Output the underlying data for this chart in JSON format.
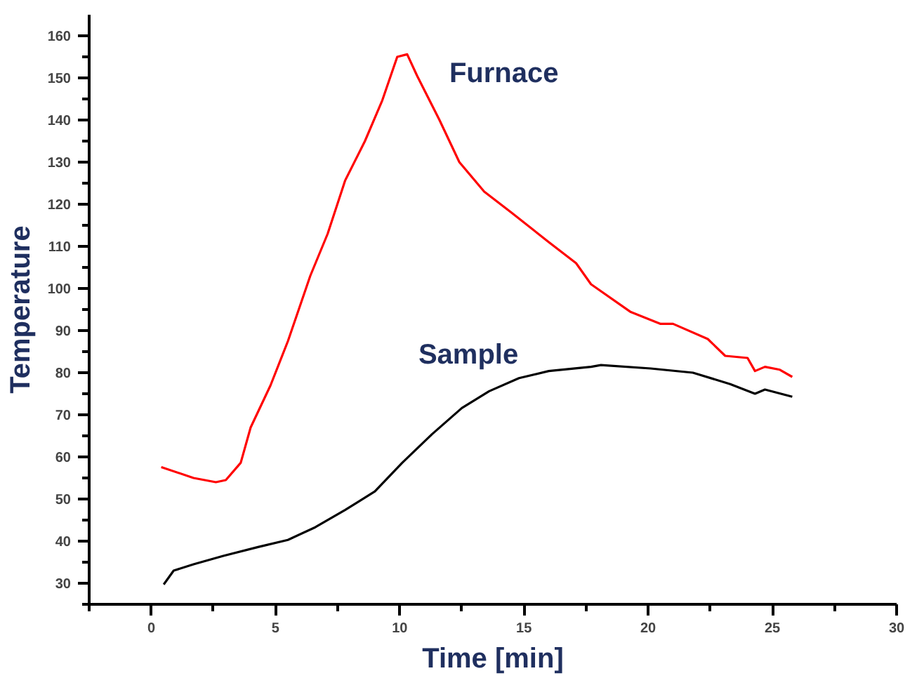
{
  "chart_data": {
    "type": "line",
    "xlabel": "Time [min]",
    "ylabel": "Temperature",
    "xlim": [
      -2.5,
      30
    ],
    "xticks": [
      0,
      5,
      10,
      15,
      20,
      25,
      30
    ],
    "ylim": [
      25,
      165
    ],
    "yticks": [
      30,
      40,
      50,
      60,
      70,
      80,
      90,
      100,
      110,
      120,
      130,
      140,
      150,
      160
    ],
    "grid": false,
    "legend": false,
    "marker": "none",
    "line_style": "solid",
    "series": [
      {
        "name": "Furnace",
        "color": "#ff0000",
        "x": [
          0.4,
          1.7,
          2.6,
          3.0,
          3.6,
          4.0,
          4.8,
          5.5,
          6.4,
          7.1,
          7.8,
          8.6,
          9.3,
          9.9,
          10.3,
          10.7,
          11.6,
          12.4,
          13.4,
          14.5,
          16.0,
          17.1,
          17.7,
          19.3,
          20.5,
          21.0,
          22.4,
          23.1,
          24.0,
          24.3,
          24.7,
          25.3,
          25.8
        ],
        "values": [
          57.6,
          55,
          54,
          54.5,
          58.6,
          67,
          77,
          87.5,
          103,
          113,
          125.6,
          135,
          144.7,
          155,
          155.6,
          150.5,
          140,
          130,
          123,
          118,
          111,
          106,
          101,
          94.4,
          91.6,
          91.6,
          88,
          84,
          83.5,
          80.4,
          81.4,
          80.7,
          79
        ]
      },
      {
        "name": "Sample",
        "color": "#000000",
        "x": [
          0.5,
          0.9,
          1.7,
          2.9,
          4.3,
          5.5,
          6.6,
          7.8,
          9.0,
          10.1,
          11.3,
          12.5,
          13.6,
          14.8,
          16.0,
          17.7,
          18.1,
          20.1,
          21.8,
          23.3,
          24.3,
          24.7,
          25.8
        ],
        "values": [
          29.7,
          33,
          34.5,
          36.5,
          38.6,
          40.3,
          43.3,
          47.4,
          51.8,
          58.6,
          65.4,
          71.6,
          75.6,
          78.7,
          80.4,
          81.4,
          81.8,
          81,
          80,
          77.3,
          75,
          76,
          74.3
        ]
      }
    ]
  }
}
